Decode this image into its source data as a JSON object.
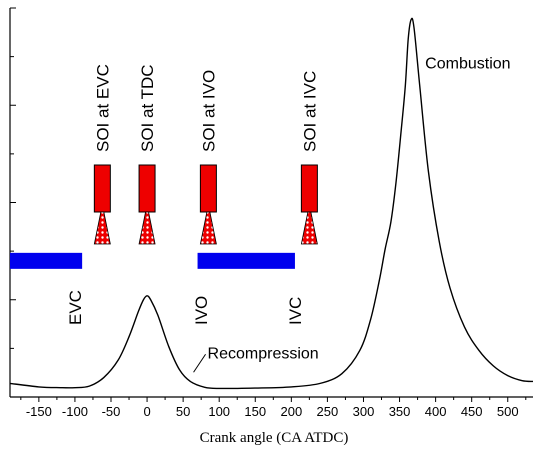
{
  "chart_data": {
    "type": "line",
    "title": "",
    "xlabel": "Crank angle (CA ATDC)",
    "ylabel": "",
    "xlim": [
      -190,
      535
    ],
    "ylim": [
      0,
      100
    ],
    "x_ticks": [
      -150,
      -100,
      -50,
      0,
      50,
      100,
      150,
      200,
      250,
      300,
      350,
      400,
      450,
      500
    ],
    "y_ticks": [
      0,
      12.5,
      25,
      37.5,
      50,
      62.5,
      75,
      87.5,
      100
    ],
    "grid": false,
    "series": [
      {
        "points": [
          [
            -190,
            3.5
          ],
          [
            -150,
            2.6
          ],
          [
            -120,
            2.4
          ],
          [
            -100,
            2.4
          ],
          [
            -80,
            2.8
          ],
          [
            -60,
            5.0
          ],
          [
            -40,
            9.5
          ],
          [
            -25,
            15.5
          ],
          [
            -12,
            22.0
          ],
          [
            -5,
            25.0
          ],
          [
            0,
            26.0
          ],
          [
            5,
            25.0
          ],
          [
            15,
            21.0
          ],
          [
            30,
            13.0
          ],
          [
            45,
            7.0
          ],
          [
            60,
            4.0
          ],
          [
            80,
            2.5
          ],
          [
            100,
            2.2
          ],
          [
            150,
            2.3
          ],
          [
            200,
            2.6
          ],
          [
            240,
            3.5
          ],
          [
            270,
            6.0
          ],
          [
            295,
            12.0
          ],
          [
            310,
            20.0
          ],
          [
            322,
            30.0
          ],
          [
            330,
            38.0
          ],
          [
            338,
            45.0
          ],
          [
            345,
            55.0
          ],
          [
            352,
            68.0
          ],
          [
            358,
            80.0
          ],
          [
            362,
            92.0
          ],
          [
            366,
            97.0
          ],
          [
            370,
            95.0
          ],
          [
            378,
            80.0
          ],
          [
            390,
            58.0
          ],
          [
            405,
            40.0
          ],
          [
            420,
            28.0
          ],
          [
            440,
            18.0
          ],
          [
            460,
            12.0
          ],
          [
            480,
            8.0
          ],
          [
            500,
            5.5
          ],
          [
            520,
            4.2
          ],
          [
            535,
            4.0
          ]
        ]
      }
    ],
    "annotations": {
      "combustion": {
        "text": "Combustion",
        "x": 380,
        "y": 86
      },
      "recompression": {
        "text": "Recompression",
        "x": 70,
        "y": 11.5
      }
    },
    "valve_events": [
      {
        "label": "EVC",
        "x": -100
      },
      {
        "label": "IVO",
        "x": 75
      },
      {
        "label": "IVC",
        "x": 205
      }
    ],
    "valve_open_periods": [
      {
        "x_start": -190,
        "x_end": -90,
        "y": 35.0
      },
      {
        "x_start": 70,
        "x_end": 205,
        "y": 35.0
      }
    ],
    "injection_timings": [
      {
        "label": "SOI at EVC",
        "x": -62
      },
      {
        "label": "SOI at TDC",
        "x": 0
      },
      {
        "label": "SOI at IVO",
        "x": 85
      },
      {
        "label": "SOI at IVC",
        "x": 225
      }
    ],
    "colors": {
      "curve": "#000000",
      "valve_bar": "#0000ee",
      "injector_body": "#ee0000",
      "spray": "#ee0000",
      "axis": "#000000"
    }
  }
}
